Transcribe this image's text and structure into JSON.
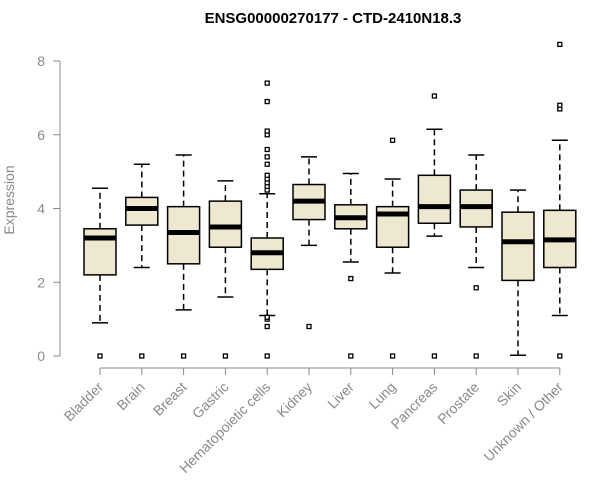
{
  "chart_data": {
    "type": "boxplot",
    "title": "ENSG00000270177 - CTD-2410N18.3",
    "ylabel": "Expression",
    "xlabel": "",
    "ylim": [
      0,
      8.5
    ],
    "yticks": [
      0,
      2,
      4,
      6,
      8
    ],
    "categories": [
      "Bladder",
      "Brain",
      "Breast",
      "Gastric",
      "Hematopoietic cells",
      "Kidney",
      "Liver",
      "Lung",
      "Pancreas",
      "Prostate",
      "Skin",
      "Unknown / Other"
    ],
    "boxes": [
      {
        "min": 0.9,
        "q1": 2.2,
        "median": 3.2,
        "q3": 3.45,
        "max": 4.55,
        "outliers": [
          0
        ]
      },
      {
        "min": 2.4,
        "q1": 3.55,
        "median": 4.0,
        "q3": 4.3,
        "max": 5.2,
        "outliers": [
          0
        ]
      },
      {
        "min": 1.25,
        "q1": 2.5,
        "median": 3.35,
        "q3": 4.05,
        "max": 5.45,
        "outliers": [
          0
        ]
      },
      {
        "min": 1.6,
        "q1": 2.95,
        "median": 3.5,
        "q3": 4.2,
        "max": 4.75,
        "outliers": [
          0
        ]
      },
      {
        "min": 1.1,
        "q1": 2.35,
        "median": 2.8,
        "q3": 3.2,
        "max": 4.4,
        "outliers": [
          0,
          0.8,
          1.0,
          1.05,
          4.5,
          4.6,
          4.7,
          4.8,
          4.9,
          5.2,
          5.4,
          5.6,
          6.0,
          6.1,
          6.9,
          7.4
        ]
      },
      {
        "min": 3.0,
        "q1": 3.7,
        "median": 4.2,
        "q3": 4.65,
        "max": 5.4,
        "outliers": [
          0.8
        ]
      },
      {
        "min": 2.55,
        "q1": 3.45,
        "median": 3.75,
        "q3": 4.1,
        "max": 4.95,
        "outliers": [
          0,
          2.1
        ]
      },
      {
        "min": 2.25,
        "q1": 2.95,
        "median": 3.85,
        "q3": 4.05,
        "max": 4.8,
        "outliers": [
          0,
          5.85
        ]
      },
      {
        "min": 3.25,
        "q1": 3.6,
        "median": 4.05,
        "q3": 4.9,
        "max": 6.15,
        "outliers": [
          0,
          7.05
        ]
      },
      {
        "min": 2.4,
        "q1": 3.5,
        "median": 4.05,
        "q3": 4.5,
        "max": 5.45,
        "outliers": [
          0,
          1.85
        ]
      },
      {
        "min": 0.02,
        "q1": 2.05,
        "median": 3.1,
        "q3": 3.9,
        "max": 4.5,
        "outliers": []
      },
      {
        "min": 1.1,
        "q1": 2.4,
        "median": 3.15,
        "q3": 3.95,
        "max": 5.85,
        "outliers": [
          0,
          6.7,
          6.8,
          8.45
        ]
      }
    ]
  }
}
